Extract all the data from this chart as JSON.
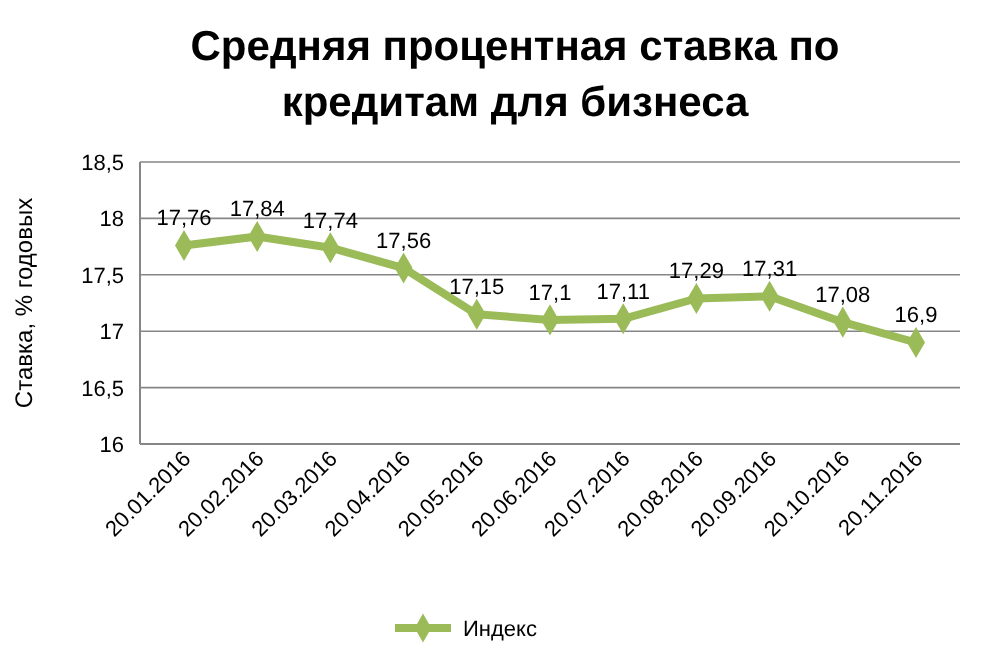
{
  "chart_data": {
    "type": "line",
    "title": "Средняя процентная ставка по кредитам для бизнеса",
    "ylabel": "Ставка, % годовых",
    "categories": [
      "20.01.2016",
      "20.02.2016",
      "20.03.2016",
      "20.04.2016",
      "20.05.2016",
      "20.06.2016",
      "20.07.2016",
      "20.08.2016",
      "20.09.2016",
      "20.10.2016",
      "20.11.2016"
    ],
    "series": [
      {
        "name": "Индекс",
        "color": "#9bbb59",
        "values": [
          17.76,
          17.84,
          17.74,
          17.56,
          17.15,
          17.1,
          17.11,
          17.29,
          17.31,
          17.08,
          16.9
        ],
        "value_labels": [
          "17,76",
          "17,84",
          "17,74",
          "17,56",
          "17,15",
          "17,1",
          "17,11",
          "17,29",
          "17,31",
          "17,08",
          "16,9"
        ]
      }
    ],
    "ylim": [
      16,
      18.5
    ],
    "yticks": [
      {
        "value": 16,
        "label": "16"
      },
      {
        "value": 16.5,
        "label": "16,5"
      },
      {
        "value": 17,
        "label": "17"
      },
      {
        "value": 17.5,
        "label": "17,5"
      },
      {
        "value": 18,
        "label": "18"
      },
      {
        "value": 18.5,
        "label": "18,5"
      }
    ],
    "grid": "y",
    "legend": "bottom",
    "marker": "diamond",
    "line_style": "solid"
  }
}
